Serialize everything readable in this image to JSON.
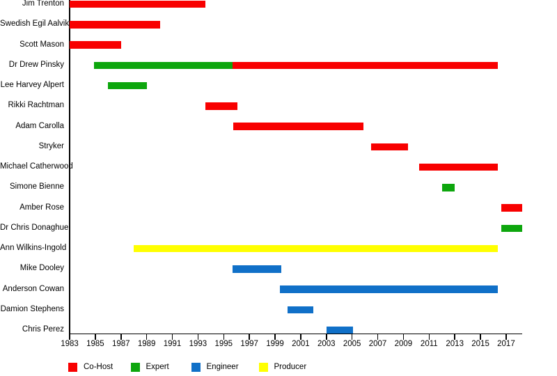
{
  "chart_data": {
    "type": "bar",
    "subtype": "horizontal-timeline-gantt",
    "title": "",
    "xlabel": "",
    "ylabel": "",
    "grid": false,
    "legend_position": "bottom",
    "axis_color": "#000000",
    "x_axis": {
      "min": 1983,
      "max": 2018.25,
      "ticks": [
        1983,
        1985,
        1987,
        1989,
        1991,
        1993,
        1995,
        1997,
        1999,
        2001,
        2003,
        2005,
        2007,
        2009,
        2011,
        2013,
        2015,
        2017
      ]
    },
    "role_colors": {
      "Co-Host": "#f80000",
      "Expert": "#0da60d",
      "Engineer": "#1070c8",
      "Producer": "#ffff00"
    },
    "legend": [
      {
        "label": "Co-Host",
        "color": "#f80000"
      },
      {
        "label": "Expert",
        "color": "#0da60d"
      },
      {
        "label": "Engineer",
        "color": "#1070c8"
      },
      {
        "label": "Producer",
        "color": "#ffff00"
      }
    ],
    "rows": [
      {
        "name": "Jim Trenton",
        "segments": [
          {
            "role": "Co-Host",
            "start": 1983,
            "end": 1993.6
          }
        ]
      },
      {
        "name": "Swedish Egil Aalvik",
        "segments": [
          {
            "role": "Co-Host",
            "start": 1983,
            "end": 1990.05
          }
        ]
      },
      {
        "name": "Scott Mason",
        "segments": [
          {
            "role": "Co-Host",
            "start": 1983,
            "end": 1987
          }
        ]
      },
      {
        "name": "Dr Drew Pinsky",
        "segments": [
          {
            "role": "Expert",
            "start": 1984.9,
            "end": 1995.7
          },
          {
            "role": "Co-Host",
            "start": 1995.7,
            "end": 2016.35
          }
        ]
      },
      {
        "name": "Lee Harvey Alpert",
        "segments": [
          {
            "role": "Expert",
            "start": 1986,
            "end": 1989
          }
        ]
      },
      {
        "name": "Rikki Rachtman",
        "segments": [
          {
            "role": "Co-Host",
            "start": 1993.6,
            "end": 1996.05
          }
        ]
      },
      {
        "name": "Adam Carolla",
        "segments": [
          {
            "role": "Co-Host",
            "start": 1995.75,
            "end": 2005.9
          }
        ]
      },
      {
        "name": "Stryker",
        "segments": [
          {
            "role": "Co-Host",
            "start": 2006.5,
            "end": 2009.35
          }
        ]
      },
      {
        "name": "Michael Catherwood",
        "segments": [
          {
            "role": "Co-Host",
            "start": 2010.2,
            "end": 2016.35
          }
        ]
      },
      {
        "name": "Simone Bienne",
        "segments": [
          {
            "role": "Expert",
            "start": 2012,
            "end": 2013
          }
        ]
      },
      {
        "name": "Amber Rose",
        "segments": [
          {
            "role": "Co-Host",
            "start": 2016.6,
            "end": 2018.25
          }
        ]
      },
      {
        "name": "Dr Chris Donaghue",
        "segments": [
          {
            "role": "Expert",
            "start": 2016.6,
            "end": 2018.25
          }
        ]
      },
      {
        "name": "Ann Wilkins-Ingold",
        "segments": [
          {
            "role": "Producer",
            "start": 1988,
            "end": 2016.35
          }
        ]
      },
      {
        "name": "Mike Dooley",
        "segments": [
          {
            "role": "Engineer",
            "start": 1995.7,
            "end": 1999.5
          }
        ]
      },
      {
        "name": "Anderson Cowan",
        "segments": [
          {
            "role": "Engineer",
            "start": 1999.4,
            "end": 2016.35
          }
        ]
      },
      {
        "name": "Damion Stephens",
        "segments": [
          {
            "role": "Engineer",
            "start": 2000,
            "end": 2002
          }
        ]
      },
      {
        "name": "Chris Perez",
        "segments": [
          {
            "role": "Engineer",
            "start": 2003,
            "end": 2005.05
          }
        ]
      }
    ]
  }
}
